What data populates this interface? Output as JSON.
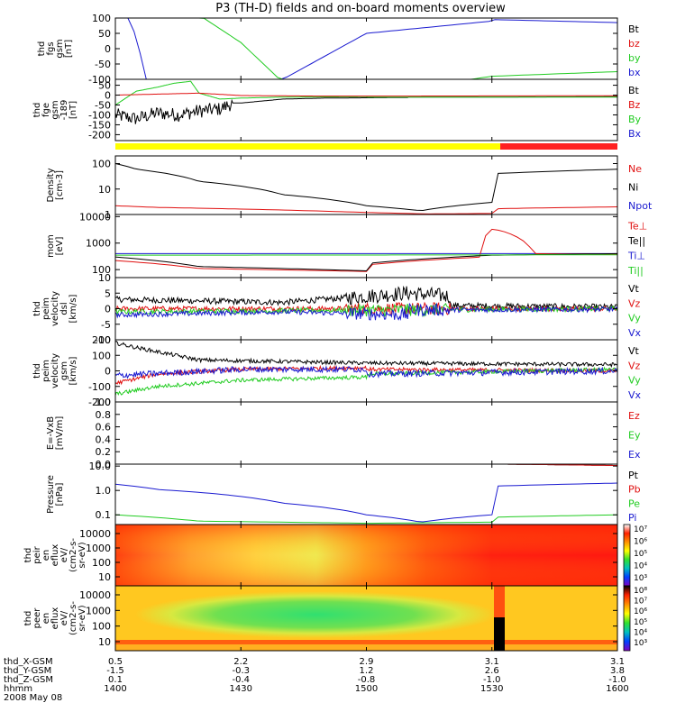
{
  "title": "P3 (TH-D) fields and on-board moments overview",
  "colors": {
    "black": "#000000",
    "red": "#e01010",
    "green": "#22cc22",
    "blue": "#1a1ad0",
    "yellow": "#ffff00",
    "flagred": "#ff2020"
  },
  "chart_data": [
    {
      "type": "line",
      "id": "fgs",
      "ylabel": [
        "thd",
        "fgs",
        "gsm",
        "[nT]"
      ],
      "ylim": [
        -100,
        100
      ],
      "yticks": [
        "100",
        "50",
        "0",
        "-50",
        "-100"
      ],
      "legend": [
        {
          "label": "Bt",
          "color": "black"
        },
        {
          "label": "bz",
          "color": "red"
        },
        {
          "label": "by",
          "color": "green"
        },
        {
          "label": "bx",
          "color": "blue"
        }
      ],
      "series": [
        {
          "name": "bx",
          "color": "blue",
          "x": [
            1403,
            1405,
            1406,
            1407,
            1440,
            1460,
            1490,
            1530,
            1560,
            1600
          ],
          "y": [
            100,
            40,
            -20,
            -100,
            -100,
            50,
            90,
            95,
            85,
            70
          ]
        },
        {
          "name": "by",
          "color": "green",
          "x": [
            1420,
            1430,
            1440,
            1480,
            1530,
            1560,
            1600
          ],
          "y": [
            110,
            20,
            -110,
            -110,
            -90,
            -75,
            -55
          ]
        }
      ]
    },
    {
      "type": "line",
      "id": "fge",
      "ylabel": [
        "thd",
        "fge",
        "gsm",
        "-189",
        "[nT]"
      ],
      "ylim": [
        -230,
        80
      ],
      "yticks": [
        "50",
        "0",
        "-50",
        "-100",
        "-150",
        "-200"
      ],
      "legend": [
        {
          "label": "Bt",
          "color": "black"
        },
        {
          "label": "Bz",
          "color": "red"
        },
        {
          "label": "By",
          "color": "green"
        },
        {
          "label": "Bx",
          "color": "blue"
        }
      ],
      "series": [
        {
          "name": "Bx",
          "color": "black",
          "x": [
            1400,
            1405,
            1410,
            1415,
            1420,
            1425,
            1428,
            1430,
            1435,
            1440,
            1450,
            1470,
            1500,
            1530,
            1560,
            1600
          ],
          "y": [
            -100,
            -120,
            -90,
            -100,
            -80,
            -70,
            -40,
            -40,
            -30,
            -20,
            -15,
            -12,
            -10,
            -10,
            -8,
            -5
          ]
        },
        {
          "name": "By",
          "color": "green",
          "x": [
            1400,
            1405,
            1410,
            1414,
            1418,
            1420,
            1425,
            1430,
            1440,
            1460,
            1500,
            1600
          ],
          "y": [
            -50,
            20,
            40,
            60,
            70,
            10,
            -20,
            -15,
            -10,
            -8,
            -10,
            -10
          ]
        },
        {
          "name": "Bz",
          "color": "red",
          "x": [
            1400,
            1410,
            1420,
            1430,
            1450,
            1500,
            1600
          ],
          "y": [
            0,
            5,
            10,
            -2,
            -5,
            -5,
            -3
          ]
        }
      ]
    },
    {
      "type": "line",
      "id": "density",
      "log": true,
      "ylabel": [
        "Density",
        "[cm-3]"
      ],
      "ylim": [
        1,
        200
      ],
      "yticks": [
        "100",
        "10",
        "1"
      ],
      "legend": [
        {
          "label": "Ne",
          "color": "red"
        },
        {
          "label": "Ni",
          "color": "black"
        },
        {
          "label": "Npot",
          "color": "blue"
        }
      ],
      "series": [
        {
          "name": "Ni",
          "color": "black",
          "x": [
            1400,
            1405,
            1420,
            1440,
            1460,
            1473,
            1490,
            1510,
            1530,
            1560,
            1600
          ],
          "y": [
            100,
            60,
            20,
            6,
            2.2,
            1.4,
            3,
            15,
            40,
            60,
            80
          ]
        },
        {
          "name": "Ne",
          "color": "red",
          "x": [
            1400,
            1410,
            1440,
            1460,
            1475,
            1490,
            1510,
            1540,
            1600
          ],
          "y": [
            2.2,
            1.9,
            1.5,
            1.2,
            1.05,
            1.1,
            1.4,
            1.8,
            2
          ]
        }
      ]
    },
    {
      "type": "line",
      "id": "mom",
      "log": true,
      "ylabel": [
        "mom",
        "[eV]"
      ],
      "ylim": [
        50,
        12000
      ],
      "yticks": [
        "10000",
        "1000",
        "100"
      ],
      "legend": [
        {
          "label": "Te⊥",
          "color": "red"
        },
        {
          "label": "Te||",
          "color": "black"
        },
        {
          "label": "Ti⊥",
          "color": "blue"
        },
        {
          "label": "Ti||",
          "color": "green"
        }
      ],
      "series": [
        {
          "name": "Ti⊥",
          "color": "blue",
          "x": [
            1400,
            1600
          ],
          "y": [
            400,
            400
          ]
        },
        {
          "name": "Te⊥",
          "color": "red",
          "x": [
            1400,
            1420,
            1460,
            1500,
            1528,
            1529,
            1532,
            1540,
            1600
          ],
          "y": [
            220,
            110,
            85,
            150,
            300,
            3500,
            3000,
            400,
            380
          ]
        },
        {
          "name": "Te||",
          "color": "black",
          "x": [
            1400,
            1420,
            1460,
            1500,
            1530,
            1600
          ],
          "y": [
            300,
            130,
            90,
            170,
            350,
            400
          ]
        },
        {
          "name": "Ti||",
          "color": "green",
          "x": [
            1400,
            1600
          ],
          "y": [
            350,
            360
          ]
        }
      ]
    },
    {
      "type": "line",
      "id": "peim_dsl",
      "ylabel": [
        "thd",
        "peim",
        "velocity",
        "dsl",
        "[km/s]"
      ],
      "ylim": [
        -10,
        10
      ],
      "yticks": [
        "10",
        "5",
        "0",
        "-5",
        "-10"
      ],
      "legend": [
        {
          "label": "Vt",
          "color": "black"
        },
        {
          "label": "Vz",
          "color": "red"
        },
        {
          "label": "Vy",
          "color": "green"
        },
        {
          "label": "Vx",
          "color": "blue"
        }
      ],
      "series": [
        {
          "name": "Vt",
          "color": "black",
          "x": [
            1400,
            1440,
            1470,
            1480,
            1520,
            1600
          ],
          "y": [
            3,
            2,
            5,
            4,
            1,
            0.5
          ]
        },
        {
          "name": "Vz",
          "color": "red",
          "x": [
            1400,
            1440,
            1470,
            1500,
            1600
          ],
          "y": [
            0,
            0,
            0,
            0,
            0
          ]
        },
        {
          "name": "Vy",
          "color": "green",
          "x": [
            1400,
            1600
          ],
          "y": [
            -1,
            0
          ]
        },
        {
          "name": "Vx",
          "color": "blue",
          "x": [
            1400,
            1440,
            1470,
            1500,
            1600
          ],
          "y": [
            -2,
            -1,
            -2,
            -0.5,
            -0.2
          ]
        }
      ]
    },
    {
      "type": "line",
      "id": "peim_gsm",
      "ylabel": [
        "thd",
        "peim",
        "velocity",
        "gsm",
        "[km/s]"
      ],
      "ylim": [
        -200,
        200
      ],
      "yticks": [
        "200",
        "100",
        "0",
        "-100",
        "-200"
      ],
      "legend": [
        {
          "label": "Vt",
          "color": "black"
        },
        {
          "label": "Vz",
          "color": "red"
        },
        {
          "label": "Vy",
          "color": "green"
        },
        {
          "label": "Vx",
          "color": "blue"
        }
      ],
      "series": [
        {
          "name": "Vt",
          "color": "black",
          "x": [
            1400,
            1405,
            1420,
            1440,
            1500,
            1530,
            1600
          ],
          "y": [
            180,
            150,
            70,
            60,
            50,
            45,
            40
          ]
        },
        {
          "name": "Vz",
          "color": "red",
          "x": [
            1400,
            1410,
            1430,
            1460,
            1500,
            1600
          ],
          "y": [
            -80,
            -20,
            10,
            20,
            10,
            0
          ]
        },
        {
          "name": "Vy",
          "color": "green",
          "x": [
            1400,
            1410,
            1430,
            1460,
            1500,
            1600
          ],
          "y": [
            -150,
            -100,
            -60,
            -40,
            -20,
            10
          ]
        },
        {
          "name": "Vx",
          "color": "blue",
          "x": [
            1400,
            1430,
            1460,
            1500,
            1600
          ],
          "y": [
            -30,
            10,
            10,
            -20,
            0
          ]
        }
      ]
    },
    {
      "type": "line",
      "id": "efield",
      "ylabel": [
        "E=-VxB",
        "[mV/m]"
      ],
      "ylim": [
        0,
        1
      ],
      "yticks": [
        "1.0",
        "0.8",
        "0.6",
        "0.4",
        "0.2",
        "0.0"
      ],
      "legend": [
        {
          "label": "Ez",
          "color": "red"
        },
        {
          "label": "Ey",
          "color": "green"
        },
        {
          "label": "Ex",
          "color": "blue"
        }
      ],
      "series": []
    },
    {
      "type": "line",
      "id": "pressure",
      "log": true,
      "ylabel": [
        "Pressure",
        "[nPa]"
      ],
      "ylim": [
        0.04,
        12
      ],
      "yticks": [
        "10.0",
        "1.0",
        "0.1"
      ],
      "legend": [
        {
          "label": "Pt",
          "color": "black"
        },
        {
          "label": "Pb",
          "color": "red"
        },
        {
          "label": "Pe",
          "color": "green"
        },
        {
          "label": "Pi",
          "color": "blue"
        }
      ],
      "series": [
        {
          "name": "Pi",
          "color": "blue",
          "x": [
            1400,
            1410,
            1440,
            1460,
            1473,
            1490,
            1510,
            1530,
            1560,
            1600
          ],
          "y": [
            1.8,
            1.1,
            0.3,
            0.1,
            0.05,
            0.1,
            0.5,
            1.5,
            2,
            2.2
          ]
        },
        {
          "name": "Pe",
          "color": "green",
          "x": [
            1400,
            1420,
            1460,
            1490,
            1530,
            1600
          ],
          "y": [
            0.1,
            0.055,
            0.045,
            0.05,
            0.08,
            0.1
          ]
        },
        {
          "name": "Pt",
          "color": "black",
          "x": [
            1533,
            1570,
            1600
          ],
          "y": [
            12,
            10,
            7
          ]
        },
        {
          "name": "Pb",
          "color": "red",
          "x": [
            1533,
            1570,
            1600
          ],
          "y": [
            12,
            10,
            7
          ]
        }
      ]
    },
    {
      "type": "heatmap",
      "id": "peir",
      "ylabel": [
        "thd",
        "peir",
        "en",
        "eflux",
        "eV/",
        "(cm2-s-",
        "sr-eV)"
      ],
      "yticks": [
        "10000",
        "1000",
        "100",
        "10"
      ],
      "colorbar_ticks": [
        "10⁷",
        "10⁶",
        "10⁵",
        "10⁴",
        "10³"
      ]
    },
    {
      "type": "heatmap",
      "id": "peer",
      "ylabel": [
        "thd",
        "peer",
        "en",
        "eflux",
        "eV/",
        "(cm2-s-",
        "sr-eV)"
      ],
      "yticks": [
        "10000",
        "1000",
        "100",
        "10"
      ],
      "colorbar_ticks": [
        "10⁸",
        "10⁷",
        "10⁶",
        "10⁵",
        "10⁴",
        "10³"
      ]
    }
  ],
  "xaxis": {
    "range": [
      1400,
      1600
    ],
    "ticks": [
      1400,
      1430,
      1500,
      1530,
      1600
    ],
    "rows": [
      {
        "label": "thd_X-GSM",
        "values": [
          "0.5",
          "2.2",
          "2.9",
          "3.1",
          "3.1"
        ]
      },
      {
        "label": "thd_Y-GSM",
        "values": [
          "-1.5",
          "-0.3",
          "1.2",
          "2.6",
          "3.8"
        ]
      },
      {
        "label": "thd_Z-GSM",
        "values": [
          "0.1",
          "-0.4",
          "-0.8",
          "-1.0",
          "-1.0"
        ]
      },
      {
        "label": "hhmm",
        "values": [
          "1400",
          "1430",
          "1500",
          "1530",
          "1600"
        ]
      }
    ],
    "date": "2008 May 08"
  }
}
